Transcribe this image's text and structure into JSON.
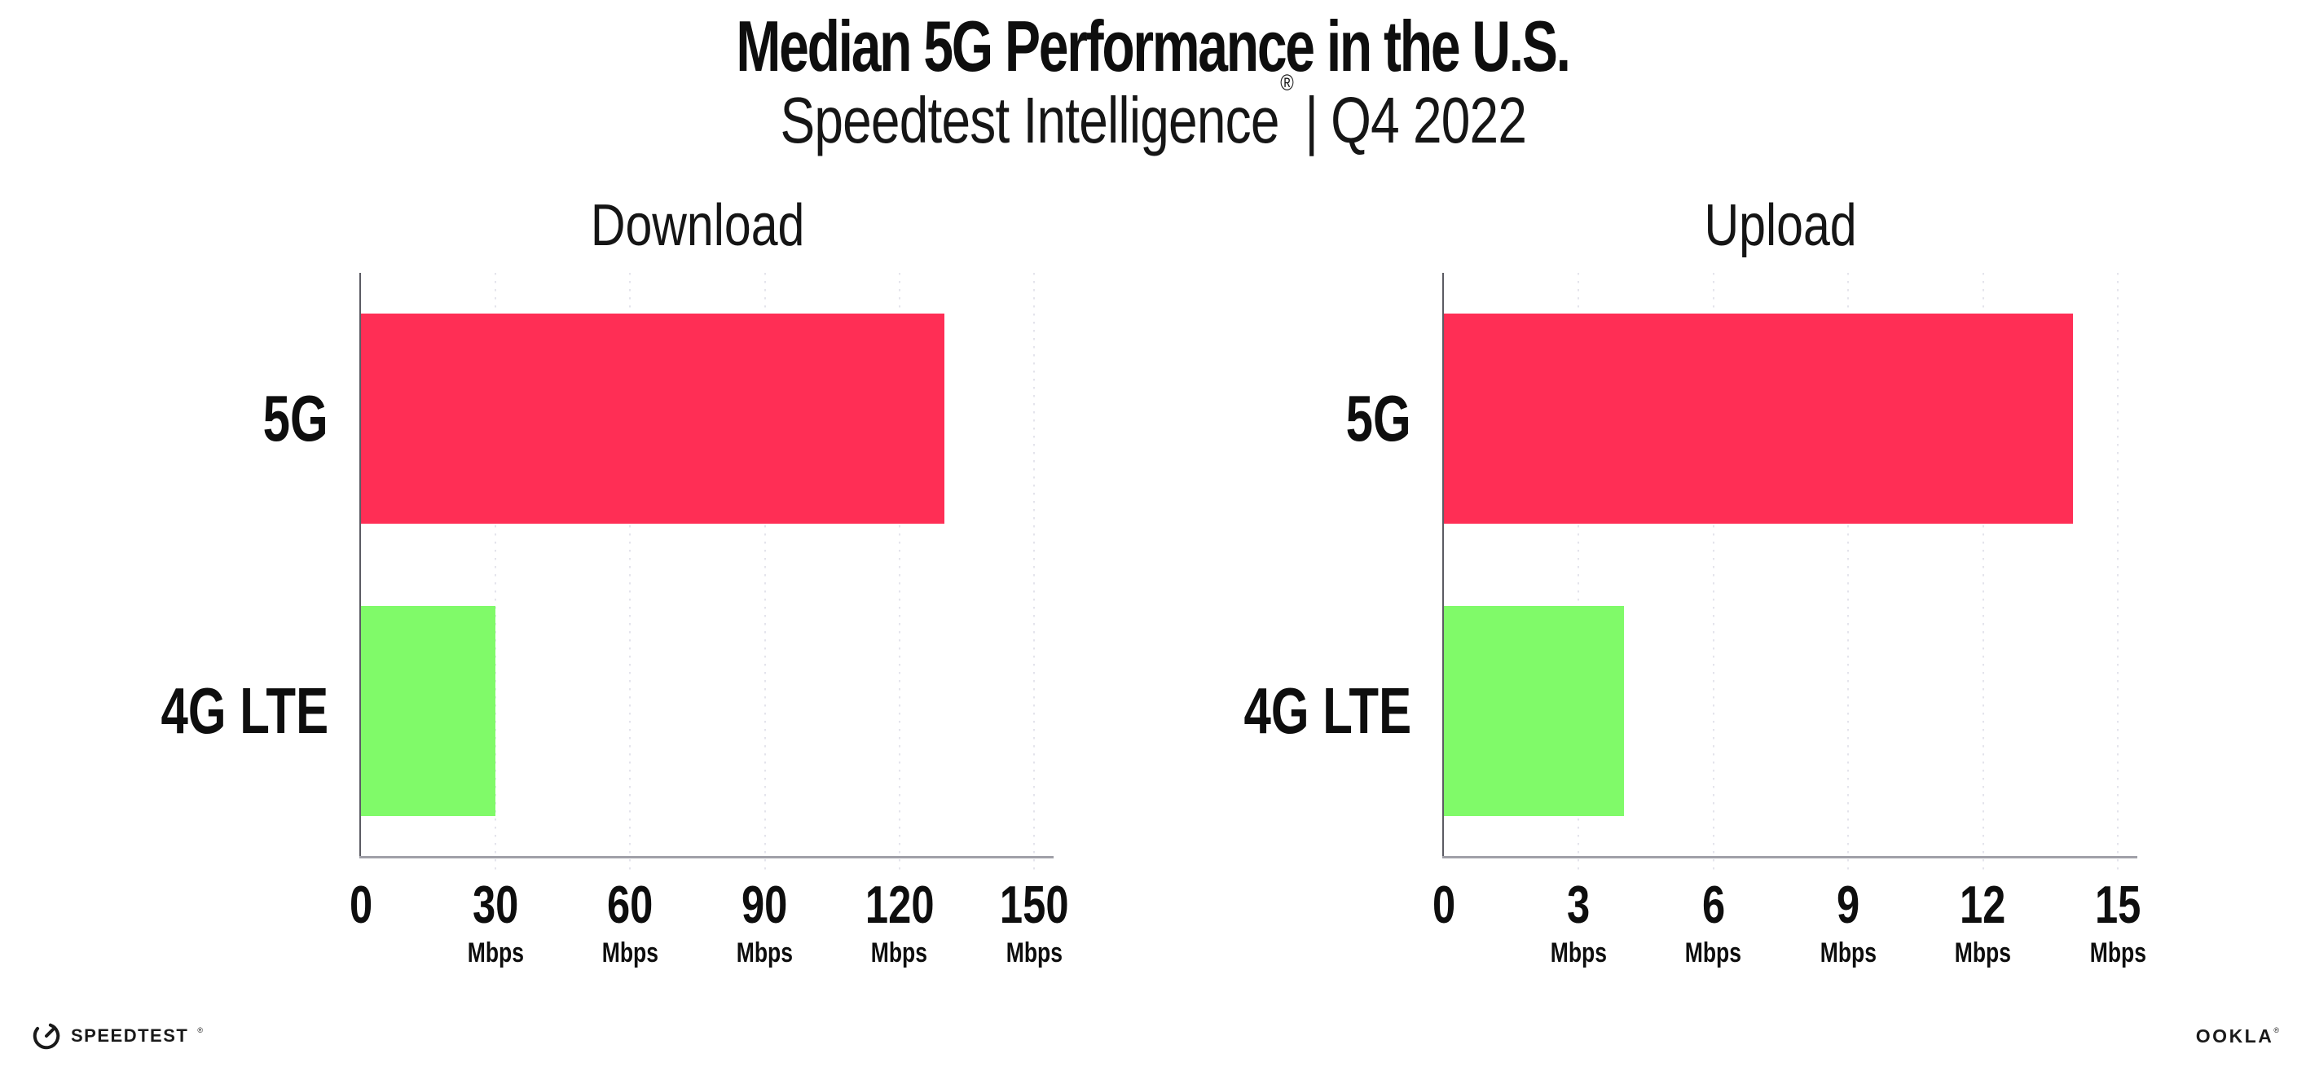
{
  "header": {
    "title": "Median 5G Performance in the U.S.",
    "subtitle_brand": "Speedtest Intelligence",
    "subtitle_reg_mark": "®",
    "subtitle_separator": "|",
    "subtitle_period": "Q4 2022"
  },
  "chart_data": [
    {
      "type": "bar",
      "orientation": "horizontal",
      "title": "Download",
      "categories": [
        "5G",
        "4G LTE"
      ],
      "values": [
        130,
        30
      ],
      "unit": "Mbps",
      "xticks": [
        0,
        30,
        60,
        90,
        120,
        150
      ],
      "xlim": [
        0,
        150
      ],
      "bar_colors": [
        "#FF2E55",
        "#80FA69"
      ],
      "grid": "dotted-vertical",
      "legend": "none",
      "xlabel": "",
      "ylabel": ""
    },
    {
      "type": "bar",
      "orientation": "horizontal",
      "title": "Upload",
      "categories": [
        "5G",
        "4G LTE"
      ],
      "values": [
        14,
        4
      ],
      "unit": "Mbps",
      "xticks": [
        0,
        3,
        6,
        9,
        12,
        15
      ],
      "xlim": [
        0,
        15
      ],
      "bar_colors": [
        "#FF2E55",
        "#80FA69"
      ],
      "grid": "dotted-vertical",
      "legend": "none",
      "xlabel": "",
      "ylabel": ""
    }
  ],
  "footer": {
    "speedtest_logo_text": "SPEEDTEST",
    "speedtest_trademark": "®",
    "ookla_logo_text": "OOKLA",
    "ookla_trademark": "®"
  },
  "colors": {
    "bar_5g": "#FF2E55",
    "bar_4g_lte": "#80FA69",
    "gridline": "#E4E4EC",
    "x_axis": "#A0A0A8",
    "y_axis": "#5B5B63",
    "text": "#121212",
    "background": "#FFFFFF"
  }
}
